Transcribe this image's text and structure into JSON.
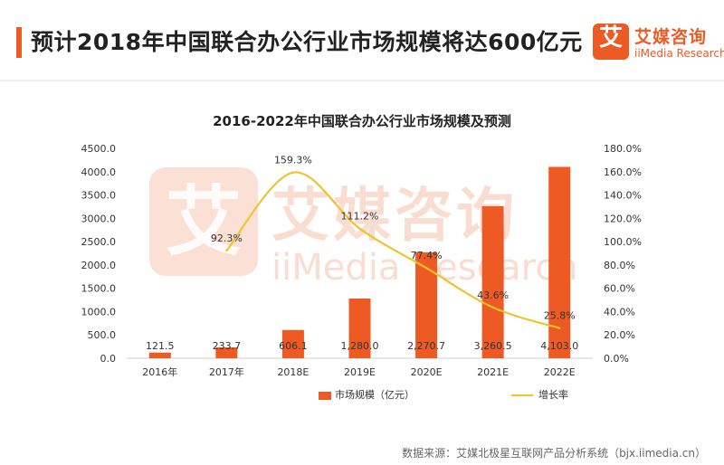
{
  "header": {
    "title": "预计2018年中国联合办公行业市场规模将达600亿元",
    "logo_cn": "艾媒咨询",
    "logo_en": "iiMedia Research",
    "logo_glyph": "艾"
  },
  "watermark": {
    "glyph": "艾",
    "cn": "艾媒咨询",
    "en": "iiMedia Research"
  },
  "colors": {
    "accent": "#ee5a24",
    "bar": "#ee5a24",
    "line": "#f2c12e"
  },
  "chart_data": {
    "type": "bar",
    "title": "2016-2022年中国联合办公行业市场规模及预测",
    "categories": [
      "2016年",
      "2017年",
      "2018E",
      "2019E",
      "2020E",
      "2021E",
      "2022E"
    ],
    "series": [
      {
        "name": "市场规模（亿元）",
        "type": "bar",
        "axis": "left",
        "values": [
          121.5,
          233.7,
          606.1,
          1280.0,
          2270.7,
          3260.5,
          4103.0
        ],
        "labels": [
          "121.5",
          "233.7",
          "606.1",
          "1,280.0",
          "2,270.7",
          "3,260.5",
          "4,103.0"
        ]
      },
      {
        "name": "增长率",
        "type": "line",
        "axis": "right",
        "values": [
          null,
          92.3,
          159.3,
          111.2,
          77.4,
          43.6,
          25.8
        ],
        "labels": [
          "",
          "92.3%",
          "159.3%",
          "111.2%",
          "77.4%",
          "43.6%",
          "25.8%"
        ]
      }
    ],
    "y_left": {
      "ylim": [
        0,
        4500
      ],
      "ticks": [
        "0.0",
        "500.0",
        "1000.0",
        "1500.0",
        "2000.0",
        "2500.0",
        "3000.0",
        "3500.0",
        "4000.0",
        "4500.0"
      ]
    },
    "y_right": {
      "ylim": [
        0,
        180
      ],
      "ticks": [
        "0.0%",
        "20.0%",
        "40.0%",
        "60.0%",
        "80.0%",
        "100.0%",
        "120.0%",
        "140.0%",
        "160.0%",
        "180.0%"
      ]
    },
    "grid": false,
    "legend_position": "bottom-center"
  },
  "footer": {
    "source": "数据来源：艾媒北极星互联网产品分析系统（bjx.iimedia.cn）"
  }
}
